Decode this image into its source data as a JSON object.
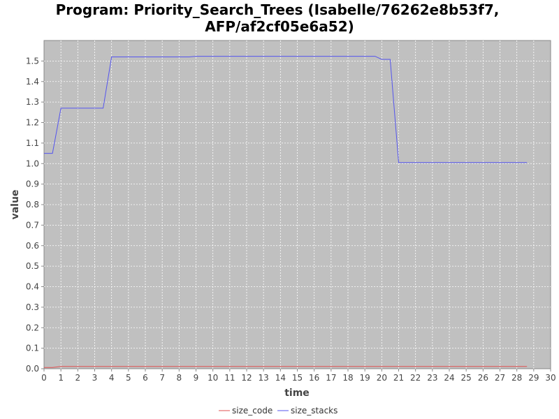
{
  "chart_data": {
    "type": "line",
    "title_lines": [
      "Program: Priority_Search_Trees (Isabelle/76262e8b53f7,",
      "AFP/af2cf05e6a52)"
    ],
    "xlabel": "time",
    "ylabel": "value",
    "xlim": [
      0,
      30
    ],
    "ylim": [
      0,
      1.6
    ],
    "xticks": [
      0,
      1,
      2,
      3,
      4,
      5,
      6,
      7,
      8,
      9,
      10,
      11,
      12,
      13,
      14,
      15,
      16,
      17,
      18,
      19,
      20,
      21,
      22,
      23,
      24,
      25,
      26,
      27,
      28,
      29,
      30
    ],
    "yticks": [
      "0.0",
      "0.1",
      "0.2",
      "0.3",
      "0.4",
      "0.5",
      "0.6",
      "0.7",
      "0.8",
      "0.9",
      "1.0",
      "1.1",
      "1.2",
      "1.3",
      "1.4",
      "1.5"
    ],
    "grid": true,
    "legend_position": "bottom",
    "plot_background": "#c0c0c0",
    "series": [
      {
        "name": "size_code",
        "color": "#e05050",
        "x": [
          0,
          0.5,
          1,
          28.6
        ],
        "y": [
          0.006,
          0.006,
          0.011,
          0.011
        ]
      },
      {
        "name": "size_stacks",
        "color": "#5555ee",
        "x": [
          0,
          0.5,
          1,
          3.5,
          4,
          8.6,
          9,
          19.6,
          20,
          20.5,
          21,
          28.6
        ],
        "y": [
          1.05,
          1.05,
          1.27,
          1.27,
          1.52,
          1.52,
          1.523,
          1.523,
          1.508,
          1.508,
          1.005,
          1.005
        ]
      }
    ]
  }
}
